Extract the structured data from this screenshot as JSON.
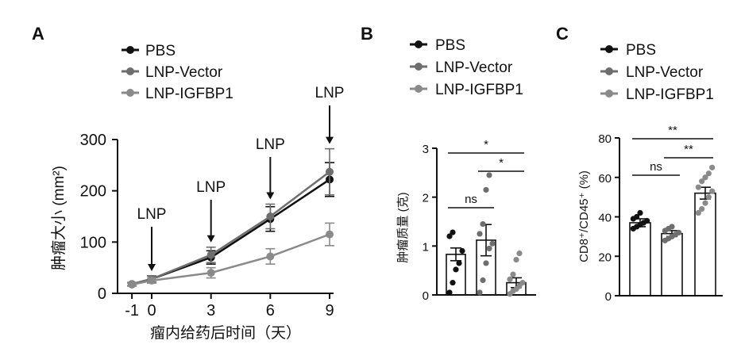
{
  "chart_data": [
    {
      "panel": "A",
      "type": "line",
      "xlabel": "瘤内给药后时间（天）",
      "ylabel": "肿瘤大小 (mm²)",
      "x": [
        -1,
        0,
        3,
        6,
        9
      ],
      "x_ticks": [
        "-1",
        "0",
        "3",
        "6",
        "9"
      ],
      "y_ticks": [
        "0",
        "100",
        "200",
        "300"
      ],
      "ylim": [
        0,
        300
      ],
      "series": [
        {
          "name": "PBS",
          "values": [
            18,
            28,
            70,
            145,
            222
          ],
          "err": [
            3,
            6,
            13,
            24,
            33
          ],
          "color": "#111111"
        },
        {
          "name": "LNP-Vector",
          "values": [
            18,
            28,
            75,
            150,
            237
          ],
          "err": [
            3,
            6,
            15,
            24,
            45
          ],
          "color": "#6e6e6e"
        },
        {
          "name": "LNP-IGFBP1",
          "values": [
            17,
            25,
            40,
            72,
            115
          ],
          "err": [
            3,
            5,
            10,
            15,
            22
          ],
          "color": "#8a8a8a"
        }
      ],
      "annotations": [
        {
          "text": "LNP",
          "x": 0
        },
        {
          "text": "LNP",
          "x": 3
        },
        {
          "text": "LNP",
          "x": 6
        },
        {
          "text": "LNP",
          "x": 9
        }
      ],
      "legend": "top"
    },
    {
      "panel": "B",
      "type": "bar",
      "ylabel": "肿瘤质量 (克)",
      "categories": [
        "PBS",
        "LNP-Vector",
        "LNP-IGFBP1"
      ],
      "values": [
        0.83,
        1.12,
        0.25
      ],
      "err": [
        0.13,
        0.32,
        0.1
      ],
      "points": [
        [
          0.05,
          0.25,
          0.52,
          0.65,
          0.9,
          1.2,
          1.28
        ],
        [
          0.05,
          0.3,
          0.65,
          0.95,
          1.05,
          1.25,
          1.45,
          2.15,
          2.45
        ],
        [
          0.02,
          0.08,
          0.12,
          0.18,
          0.25,
          0.32,
          0.42,
          0.72,
          0.85
        ]
      ],
      "y_ticks": [
        "0",
        "1",
        "2",
        "3"
      ],
      "ylim": [
        0,
        3
      ],
      "significance": [
        {
          "text": "ns",
          "groups": [
            "PBS",
            "LNP-Vector"
          ]
        },
        {
          "text": "*",
          "groups": [
            "PBS",
            "LNP-IGFBP1"
          ]
        },
        {
          "text": "*",
          "groups": [
            "LNP-Vector",
            "LNP-IGFBP1"
          ]
        }
      ],
      "legend": "top"
    },
    {
      "panel": "C",
      "type": "bar",
      "ylabel": "CD8⁺/CD45⁺ (%)",
      "categories": [
        "PBS",
        "LNP-Vector",
        "LNP-IGFBP1"
      ],
      "values": [
        37,
        31.5,
        52
      ],
      "err": [
        2,
        1.5,
        3
      ],
      "points": [
        [
          34,
          35,
          36,
          37,
          38,
          39,
          40,
          42
        ],
        [
          28,
          29,
          30,
          31,
          32,
          33,
          34,
          35
        ],
        [
          42,
          44,
          47,
          50,
          53,
          55,
          58,
          60,
          62,
          65
        ]
      ],
      "y_ticks": [
        "0",
        "20",
        "40",
        "60",
        "80"
      ],
      "ylim": [
        0,
        80
      ],
      "significance": [
        {
          "text": "ns",
          "groups": [
            "PBS",
            "LNP-Vector"
          ]
        },
        {
          "text": "**",
          "groups": [
            "PBS",
            "LNP-IGFBP1"
          ]
        },
        {
          "text": "**",
          "groups": [
            "LNP-Vector",
            "LNP-IGFBP1"
          ]
        }
      ],
      "legend": "top"
    }
  ],
  "colors": {
    "PBS": "#111111",
    "LNP-Vector": "#6e6e6e",
    "LNP-IGFBP1": "#8a8a8a"
  }
}
